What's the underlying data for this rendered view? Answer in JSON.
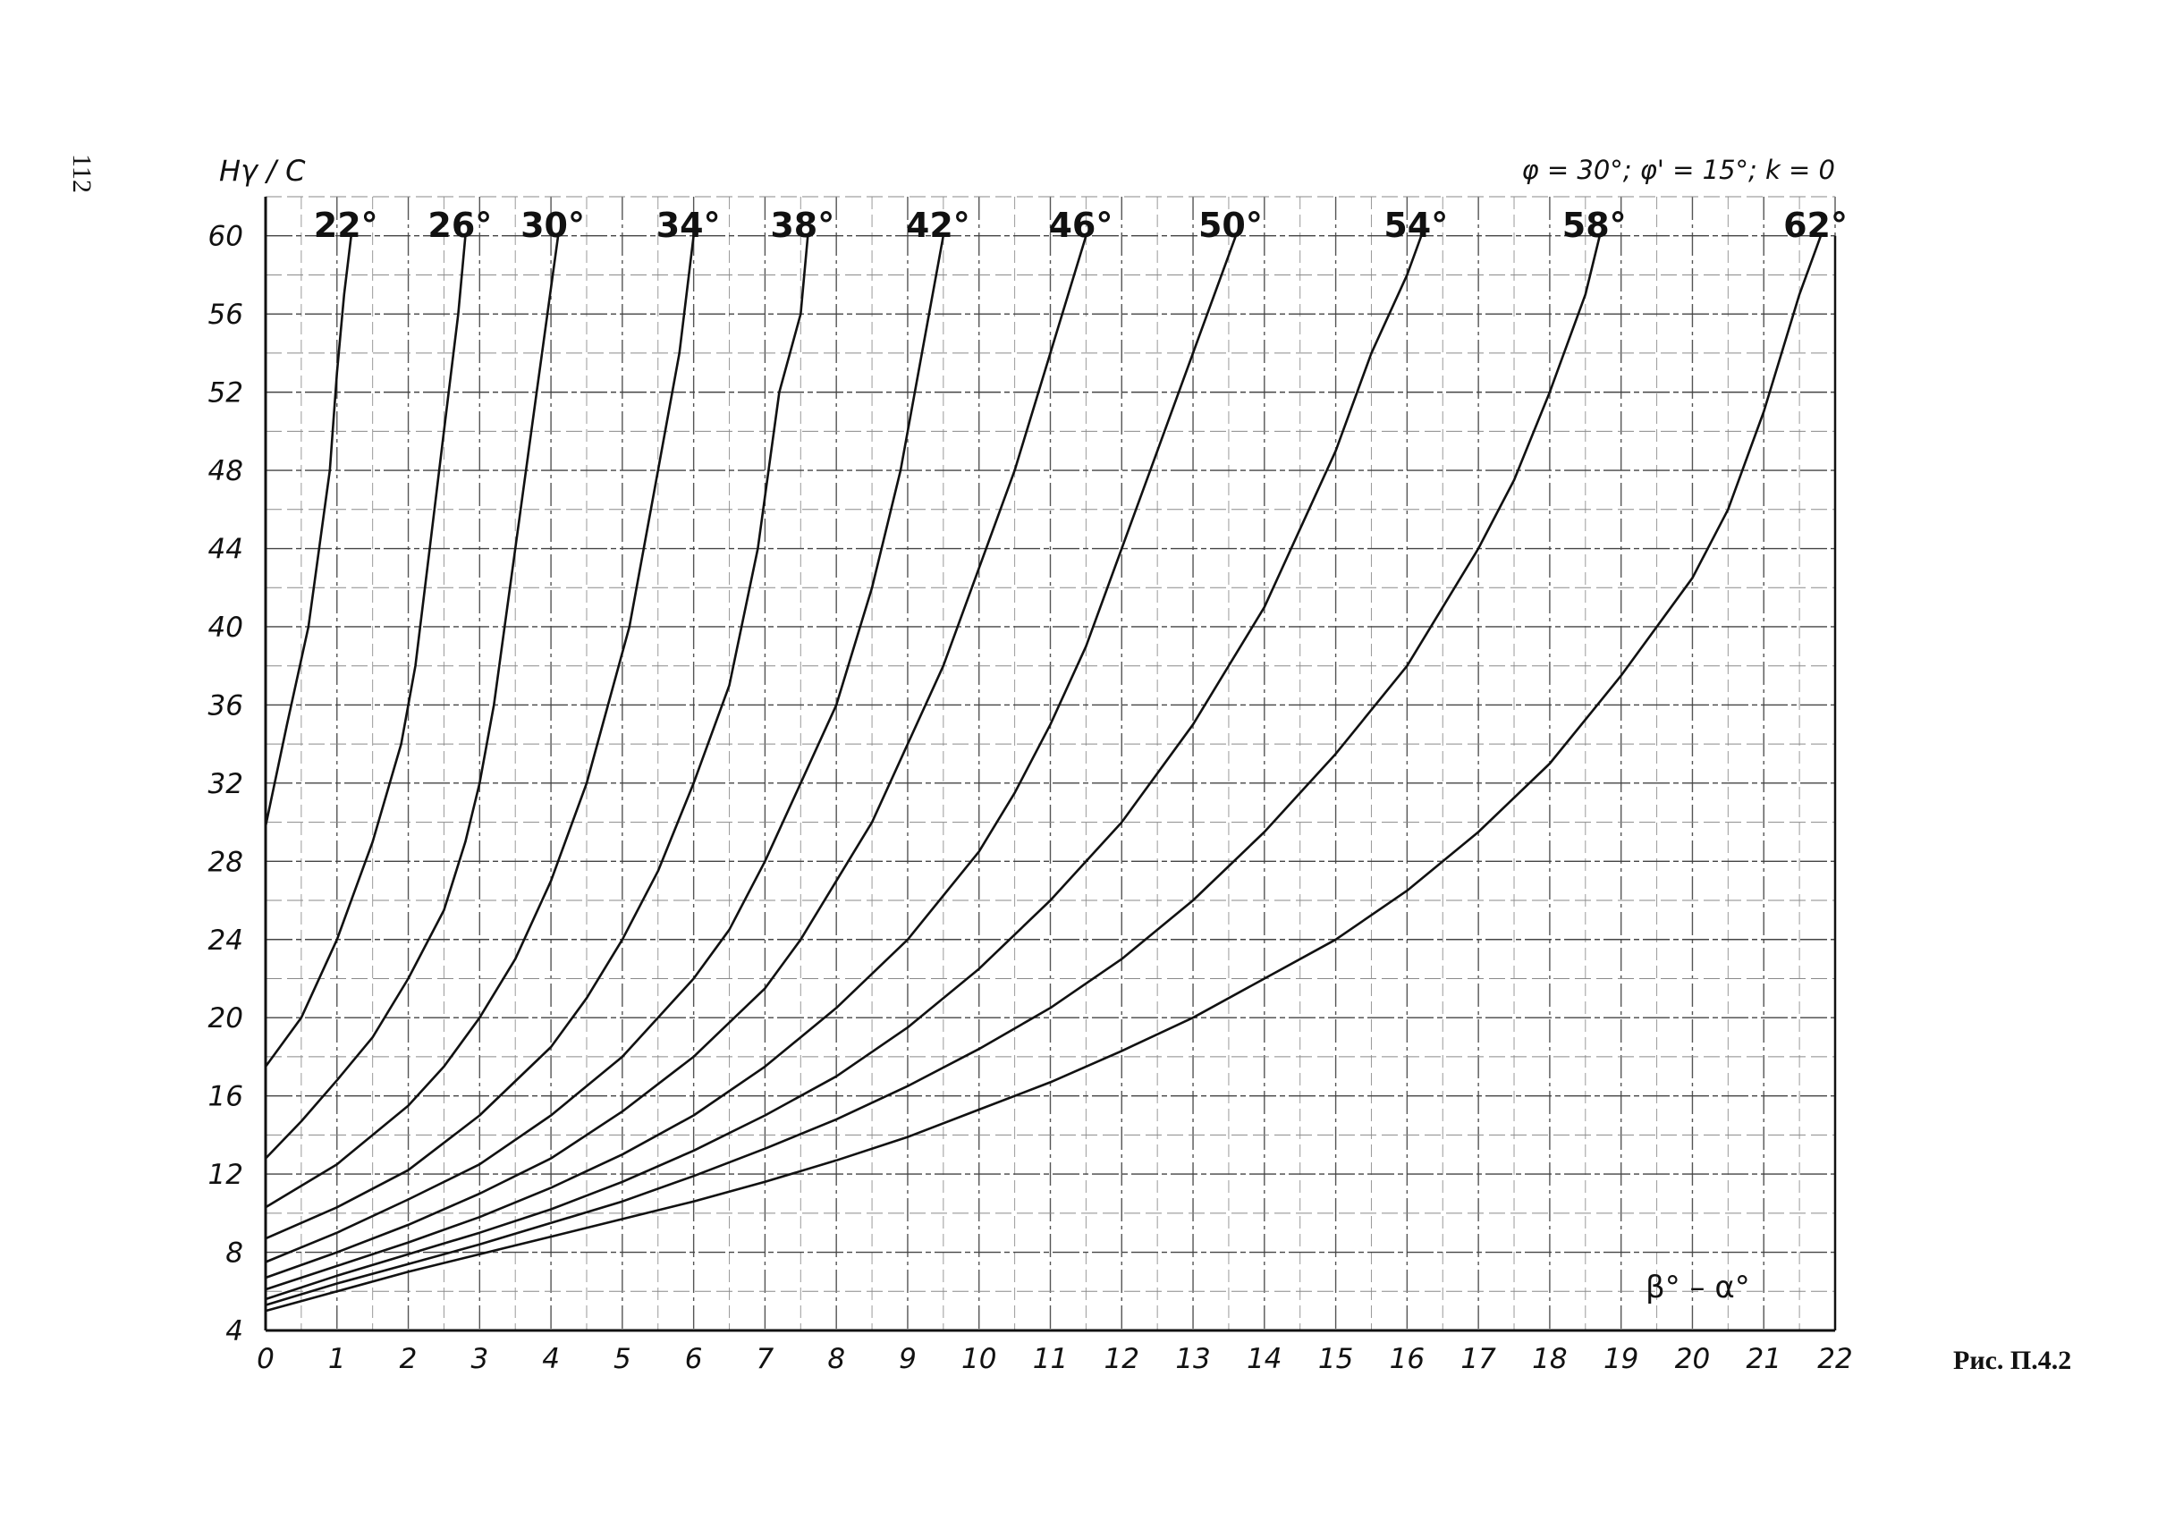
{
  "page": {
    "number": "112",
    "figure_caption": "Рис. П.4.2"
  },
  "chart_data": {
    "type": "line",
    "title": "",
    "ylabel": "Hγ / C",
    "xlabel": "β° – α°",
    "parameters": "φ = 30°; φ' = 15°; k = 0",
    "xlim": [
      0,
      22
    ],
    "ylim": [
      4,
      62
    ],
    "x_ticks": [
      0,
      1,
      2,
      3,
      4,
      5,
      6,
      7,
      8,
      9,
      10,
      11,
      12,
      13,
      14,
      15,
      16,
      17,
      18,
      19,
      20,
      21,
      22
    ],
    "y_ticks": [
      4,
      8,
      12,
      16,
      20,
      24,
      28,
      32,
      36,
      40,
      44,
      48,
      52,
      56,
      60
    ],
    "grid": true,
    "series": [
      {
        "name": "22°",
        "points": [
          [
            0,
            29.8
          ],
          [
            0.3,
            35
          ],
          [
            0.6,
            40
          ],
          [
            0.9,
            48
          ],
          [
            1.0,
            53
          ],
          [
            1.1,
            57
          ],
          [
            1.2,
            60
          ]
        ]
      },
      {
        "name": "26°",
        "points": [
          [
            0,
            17.5
          ],
          [
            0.5,
            20
          ],
          [
            1.0,
            24
          ],
          [
            1.5,
            29
          ],
          [
            1.9,
            34
          ],
          [
            2.1,
            38
          ],
          [
            2.3,
            44
          ],
          [
            2.5,
            50
          ],
          [
            2.7,
            56
          ],
          [
            2.8,
            60
          ]
        ]
      },
      {
        "name": "30°",
        "points": [
          [
            0,
            12.8
          ],
          [
            0.5,
            14.7
          ],
          [
            1.0,
            16.8
          ],
          [
            1.5,
            19
          ],
          [
            2.0,
            22
          ],
          [
            2.5,
            25.5
          ],
          [
            2.8,
            29
          ],
          [
            3.0,
            32
          ],
          [
            3.2,
            36
          ],
          [
            3.5,
            44
          ],
          [
            3.8,
            52
          ],
          [
            4.1,
            60
          ]
        ]
      },
      {
        "name": "34°",
        "points": [
          [
            0,
            10.3
          ],
          [
            1,
            12.5
          ],
          [
            2,
            15.5
          ],
          [
            2.5,
            17.5
          ],
          [
            3,
            20
          ],
          [
            3.5,
            23
          ],
          [
            4,
            27
          ],
          [
            4.5,
            32
          ],
          [
            4.8,
            36
          ],
          [
            5.1,
            40
          ],
          [
            5.5,
            48
          ],
          [
            5.8,
            54
          ],
          [
            6.0,
            60
          ]
        ]
      },
      {
        "name": "38°",
        "points": [
          [
            0,
            8.7
          ],
          [
            1,
            10.3
          ],
          [
            2,
            12.2
          ],
          [
            3,
            15
          ],
          [
            4,
            18.5
          ],
          [
            4.5,
            21
          ],
          [
            5,
            24
          ],
          [
            5.5,
            27.5
          ],
          [
            6,
            32
          ],
          [
            6.5,
            37
          ],
          [
            6.9,
            44
          ],
          [
            7.2,
            52
          ],
          [
            7.5,
            56
          ],
          [
            7.6,
            60
          ]
        ]
      },
      {
        "name": "42°",
        "points": [
          [
            0,
            7.5
          ],
          [
            1,
            9
          ],
          [
            2,
            10.7
          ],
          [
            3,
            12.5
          ],
          [
            4,
            15
          ],
          [
            5,
            18
          ],
          [
            6,
            22
          ],
          [
            6.5,
            24.5
          ],
          [
            7,
            28
          ],
          [
            7.5,
            32
          ],
          [
            8,
            36
          ],
          [
            8.5,
            42
          ],
          [
            8.9,
            48
          ],
          [
            9.2,
            54
          ],
          [
            9.5,
            60
          ]
        ]
      },
      {
        "name": "46°",
        "points": [
          [
            0,
            6.7
          ],
          [
            1,
            8
          ],
          [
            2,
            9.4
          ],
          [
            3,
            11
          ],
          [
            4,
            12.8
          ],
          [
            5,
            15.2
          ],
          [
            6,
            18
          ],
          [
            7,
            21.5
          ],
          [
            7.5,
            24
          ],
          [
            8,
            27
          ],
          [
            8.5,
            30
          ],
          [
            9,
            34
          ],
          [
            9.5,
            38
          ],
          [
            10,
            43
          ],
          [
            10.5,
            48
          ],
          [
            11,
            54
          ],
          [
            11.5,
            60
          ]
        ]
      },
      {
        "name": "50°",
        "points": [
          [
            0,
            6.1
          ],
          [
            1,
            7.3
          ],
          [
            2,
            8.5
          ],
          [
            3,
            9.8
          ],
          [
            4,
            11.3
          ],
          [
            5,
            13
          ],
          [
            6,
            15
          ],
          [
            7,
            17.5
          ],
          [
            8,
            20.5
          ],
          [
            9,
            24
          ],
          [
            10,
            28.5
          ],
          [
            10.5,
            31.5
          ],
          [
            11,
            35
          ],
          [
            11.5,
            39
          ],
          [
            12,
            44
          ],
          [
            12.5,
            49
          ],
          [
            13,
            54
          ],
          [
            13.6,
            60
          ]
        ]
      },
      {
        "name": "54°",
        "points": [
          [
            0,
            5.6
          ],
          [
            1,
            6.8
          ],
          [
            2,
            7.9
          ],
          [
            3,
            9
          ],
          [
            4,
            10.2
          ],
          [
            5,
            11.6
          ],
          [
            6,
            13.2
          ],
          [
            7,
            15
          ],
          [
            8,
            17
          ],
          [
            9,
            19.5
          ],
          [
            10,
            22.5
          ],
          [
            11,
            26
          ],
          [
            12,
            30
          ],
          [
            13,
            35
          ],
          [
            13.5,
            38
          ],
          [
            14,
            41
          ],
          [
            14.5,
            45
          ],
          [
            15,
            49
          ],
          [
            15.5,
            54
          ],
          [
            16,
            58
          ],
          [
            16.2,
            60
          ]
        ]
      },
      {
        "name": "58°",
        "points": [
          [
            0,
            5.3
          ],
          [
            1,
            6.4
          ],
          [
            2,
            7.4
          ],
          [
            3,
            8.4
          ],
          [
            4,
            9.5
          ],
          [
            5,
            10.6
          ],
          [
            6,
            11.9
          ],
          [
            7,
            13.3
          ],
          [
            8,
            14.8
          ],
          [
            9,
            16.5
          ],
          [
            10,
            18.4
          ],
          [
            11,
            20.5
          ],
          [
            12,
            23
          ],
          [
            13,
            26
          ],
          [
            14,
            29.5
          ],
          [
            15,
            33.5
          ],
          [
            16,
            38
          ],
          [
            17,
            44
          ],
          [
            17.5,
            47.5
          ],
          [
            18,
            52
          ],
          [
            18.5,
            57
          ],
          [
            18.7,
            60
          ]
        ]
      },
      {
        "name": "62°",
        "points": [
          [
            0,
            5.0
          ],
          [
            1,
            6.0
          ],
          [
            2,
            7.0
          ],
          [
            3,
            7.9
          ],
          [
            4,
            8.8
          ],
          [
            5,
            9.7
          ],
          [
            6,
            10.6
          ],
          [
            7,
            11.6
          ],
          [
            8,
            12.7
          ],
          [
            9,
            13.9
          ],
          [
            10,
            15.3
          ],
          [
            11,
            16.7
          ],
          [
            12,
            18.3
          ],
          [
            13,
            20
          ],
          [
            14,
            22
          ],
          [
            15,
            24
          ],
          [
            16,
            26.5
          ],
          [
            17,
            29.5
          ],
          [
            18,
            33
          ],
          [
            19,
            37.5
          ],
          [
            20,
            42.5
          ],
          [
            20.5,
            46
          ],
          [
            21,
            51
          ],
          [
            21.5,
            57
          ],
          [
            21.8,
            60
          ]
        ]
      }
    ]
  }
}
